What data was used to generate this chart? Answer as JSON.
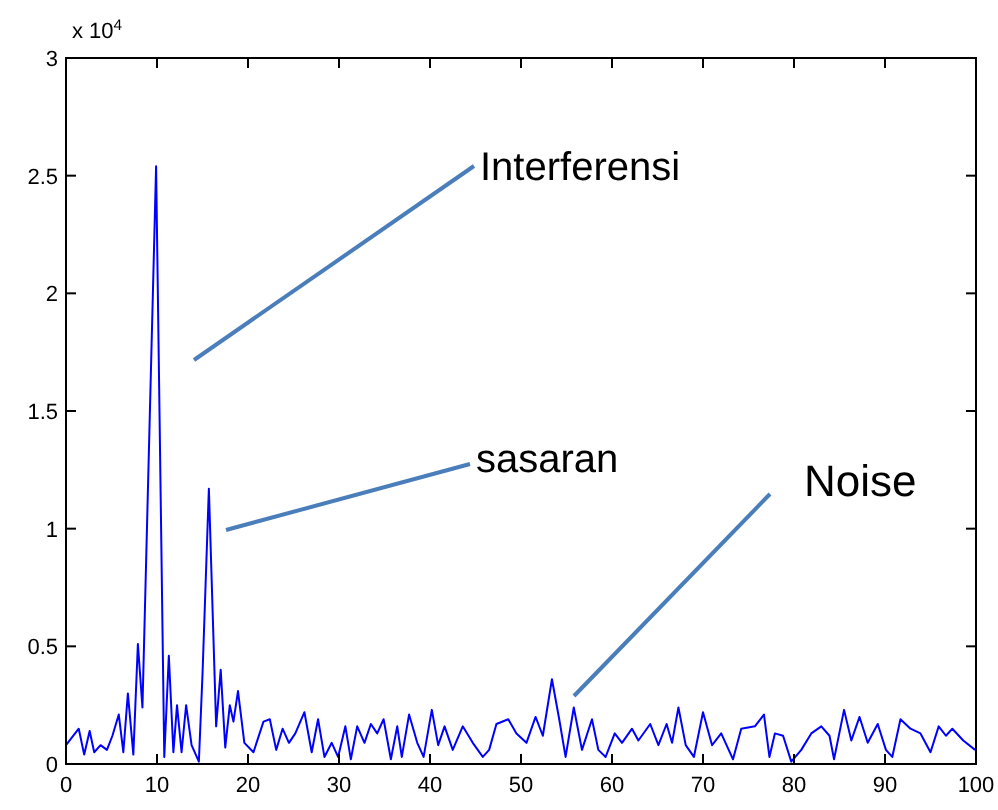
{
  "chart_data": {
    "type": "line",
    "xlim": [
      0,
      100
    ],
    "ylim": [
      0,
      3
    ],
    "xticks": [
      0,
      10,
      20,
      30,
      40,
      50,
      60,
      70,
      80,
      90,
      100
    ],
    "yticks": [
      0,
      0.5,
      1,
      1.5,
      2,
      2.5,
      3
    ],
    "annotations": [
      "x 10$^{4}$",
      "Interferensi",
      "sasaran",
      "Noise"
    ],
    "grid": false,
    "series": [
      {
        "color": "#0000ff",
        "x": [
          0,
          1.4,
          2,
          2.6,
          3.1,
          3.8,
          4.5,
          5.1,
          5.8,
          6.3,
          6.8,
          7.4,
          7.9,
          8.4,
          9.9,
          10.8,
          11.3,
          11.8,
          12.2,
          12.7,
          13.2,
          13.8,
          14.6,
          15,
          15.7,
          16.5,
          17,
          17.5,
          18,
          18.4,
          18.9,
          19.6,
          20.6,
          21.7,
          22.4,
          23.1,
          23.8,
          24.5,
          25.2,
          26.2,
          27,
          27.7,
          28.4,
          29.2,
          29.9,
          30.7,
          31.3,
          32,
          32.8,
          33.5,
          34.2,
          34.9,
          35.7,
          36.4,
          36.9,
          37.7,
          38.6,
          39.3,
          40.2,
          40.9,
          41.6,
          42.5,
          43.6,
          44.7,
          45.8,
          46.5,
          47.3,
          48.6,
          49.5,
          50.6,
          51.6,
          52.4,
          53.4,
          54.2,
          54.9,
          55.8,
          56.7,
          57.8,
          58.5,
          59.3,
          60.3,
          61.1,
          62.2,
          62.9,
          64.2,
          65.1,
          66,
          66.6,
          67.3,
          68.1,
          69,
          70,
          71,
          72,
          73.3,
          74.2,
          75.7,
          76.7,
          77.3,
          77.9,
          78.8,
          79.7,
          80.8,
          81.9,
          83,
          83.9,
          84.4,
          85.5,
          86.3,
          87.2,
          88.1,
          89.2,
          90.1,
          90.8,
          91.7,
          92.8,
          93.9,
          95,
          95.9,
          96.7,
          97.4,
          98.6,
          99.9
        ],
        "values": [
          0.08,
          0.15,
          0.04,
          0.14,
          0.05,
          0.08,
          0.06,
          0.12,
          0.21,
          0.05,
          0.3,
          0.04,
          0.51,
          0.24,
          2.54,
          0.03,
          0.46,
          0.05,
          0.25,
          0.05,
          0.25,
          0.08,
          0.01,
          0.38,
          1.17,
          0.16,
          0.4,
          0.07,
          0.25,
          0.18,
          0.31,
          0.09,
          0.05,
          0.18,
          0.19,
          0.06,
          0.15,
          0.09,
          0.13,
          0.22,
          0.05,
          0.19,
          0.03,
          0.09,
          0.03,
          0.16,
          0.02,
          0.16,
          0.09,
          0.17,
          0.13,
          0.19,
          0.02,
          0.16,
          0.03,
          0.21,
          0.09,
          0.03,
          0.23,
          0.08,
          0.16,
          0.06,
          0.16,
          0.09,
          0.03,
          0.06,
          0.17,
          0.19,
          0.13,
          0.09,
          0.2,
          0.12,
          0.36,
          0.19,
          0.03,
          0.24,
          0.06,
          0.19,
          0.06,
          0.03,
          0.13,
          0.09,
          0.15,
          0.1,
          0.17,
          0.08,
          0.17,
          0.09,
          0.24,
          0.08,
          0.03,
          0.22,
          0.08,
          0.13,
          0.02,
          0.15,
          0.16,
          0.21,
          0.03,
          0.13,
          0.12,
          0.01,
          0.06,
          0.13,
          0.16,
          0.12,
          0.02,
          0.23,
          0.1,
          0.2,
          0.09,
          0.17,
          0.06,
          0.03,
          0.19,
          0.15,
          0.13,
          0.05,
          0.16,
          0.12,
          0.15,
          0.1,
          0.06
        ]
      }
    ]
  }
}
